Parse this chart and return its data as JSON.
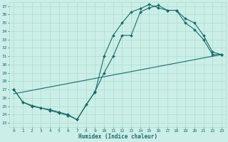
{
  "xlabel": "Humidex (Indice chaleur)",
  "bg_color": "#cceee8",
  "grid_color": "#aaddcc",
  "line_color": "#1a6b6b",
  "xlim": [
    -0.5,
    23.5
  ],
  "ylim": [
    22.5,
    37.5
  ],
  "xticks": [
    0,
    1,
    2,
    3,
    4,
    5,
    6,
    7,
    8,
    9,
    10,
    11,
    12,
    13,
    14,
    15,
    16,
    17,
    18,
    19,
    20,
    21,
    22,
    23
  ],
  "yticks": [
    23,
    24,
    25,
    26,
    27,
    28,
    29,
    30,
    31,
    32,
    33,
    34,
    35,
    36,
    37
  ],
  "line1_x": [
    0,
    1,
    2,
    3,
    4,
    5,
    6,
    7,
    8,
    9,
    10,
    11,
    12,
    13,
    14,
    15,
    16,
    17,
    18,
    19,
    20,
    21,
    22,
    23
  ],
  "line1_y": [
    27,
    25.5,
    25,
    24.8,
    24.5,
    24.2,
    23.9,
    23.4,
    25.2,
    26.7,
    31,
    33.5,
    35,
    36.3,
    36.7,
    37.2,
    36.8,
    36.5,
    36.5,
    35,
    34.2,
    33,
    31.2,
    31.2
  ],
  "line2_x": [
    0,
    1,
    2,
    3,
    4,
    5,
    6,
    7,
    9,
    10,
    11,
    12,
    13,
    14,
    15,
    16,
    17,
    18,
    19,
    20,
    21,
    22,
    23
  ],
  "line2_y": [
    27,
    25.5,
    25.1,
    24.8,
    24.6,
    24.3,
    24.0,
    23.4,
    26.8,
    29,
    31,
    33.5,
    33.5,
    36.3,
    36.8,
    37.1,
    36.5,
    36.5,
    35.5,
    35,
    33.5,
    31.5,
    31.2
  ],
  "line3_x": [
    0,
    23
  ],
  "line3_y": [
    26.5,
    31.2
  ]
}
